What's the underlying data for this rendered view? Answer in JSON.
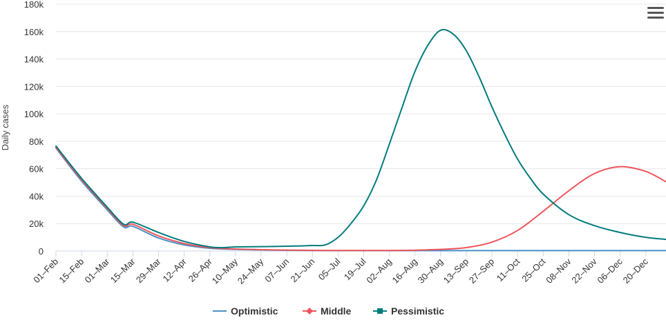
{
  "colors": {
    "optimistic": "#4a90c8",
    "middle": "#f0535a",
    "pessimistic": "#007b7c",
    "grid": "#e6e6e6",
    "axis": "#ccd6eb"
  },
  "menu": {
    "icon": "hamburger-menu-icon"
  },
  "chart_data": {
    "type": "line",
    "ylabel": "Daily cases",
    "xlabel": "",
    "ylim": [
      0,
      180000
    ],
    "yticks": [
      0,
      20000,
      40000,
      60000,
      80000,
      100000,
      120000,
      140000,
      160000,
      180000
    ],
    "ytick_labels": [
      "0",
      "20k",
      "40k",
      "60k",
      "80k",
      "100k",
      "120k",
      "140k",
      "160k",
      "180k"
    ],
    "x_start": "2021-02-01",
    "x_end": "2021-12-31",
    "xtick_dates": [
      "2021-02-01",
      "2021-02-15",
      "2021-03-01",
      "2021-03-15",
      "2021-03-29",
      "2021-04-12",
      "2021-04-26",
      "2021-05-10",
      "2021-05-24",
      "2021-06-07",
      "2021-06-21",
      "2021-07-05",
      "2021-07-19",
      "2021-08-02",
      "2021-08-16",
      "2021-08-30",
      "2021-09-13",
      "2021-09-27",
      "2021-10-11",
      "2021-10-25",
      "2021-11-08",
      "2021-11-22",
      "2021-12-06",
      "2021-12-20"
    ],
    "xtick_labels": [
      "01–Feb",
      "15–Feb",
      "01–Mar",
      "15–Mar",
      "29–Mar",
      "12–Apr",
      "26–Apr",
      "10–May",
      "24–May",
      "07–Jun",
      "21–Jun",
      "05–Jul",
      "19–Jul",
      "02–Aug",
      "16–Aug",
      "30–Aug",
      "13–Sep",
      "27–Sep",
      "11–Oct",
      "25–Oct",
      "08–Nov",
      "22–Nov",
      "06–Dec",
      "20–Dec"
    ],
    "grid": true,
    "legend_position": "bottom-center",
    "series": [
      {
        "name": "Optimistic",
        "key": "optimistic",
        "marker": "none",
        "points": [
          [
            "2021-02-01",
            75000
          ],
          [
            "2021-02-15",
            51000
          ],
          [
            "2021-03-01",
            30000
          ],
          [
            "2021-03-10",
            17500
          ],
          [
            "2021-03-15",
            18000
          ],
          [
            "2021-03-29",
            9500
          ],
          [
            "2021-04-12",
            4500
          ],
          [
            "2021-04-26",
            2000
          ],
          [
            "2021-05-10",
            1200
          ],
          [
            "2021-05-24",
            800
          ],
          [
            "2021-06-07",
            500
          ],
          [
            "2021-06-21",
            400
          ],
          [
            "2021-07-05",
            300
          ],
          [
            "2021-08-02",
            300
          ],
          [
            "2021-08-30",
            300
          ],
          [
            "2021-09-27",
            300
          ],
          [
            "2021-10-25",
            300
          ],
          [
            "2021-11-22",
            300
          ],
          [
            "2021-12-31",
            300
          ]
        ]
      },
      {
        "name": "Middle",
        "key": "middle",
        "marker": "diamond",
        "points": [
          [
            "2021-02-01",
            75500
          ],
          [
            "2021-02-15",
            52000
          ],
          [
            "2021-03-01",
            31000
          ],
          [
            "2021-03-10",
            18500
          ],
          [
            "2021-03-15",
            19500
          ],
          [
            "2021-03-29",
            11000
          ],
          [
            "2021-04-12",
            5500
          ],
          [
            "2021-04-26",
            2500
          ],
          [
            "2021-05-10",
            1500
          ],
          [
            "2021-05-24",
            1000
          ],
          [
            "2021-06-07",
            700
          ],
          [
            "2021-06-21",
            500
          ],
          [
            "2021-07-05",
            400
          ],
          [
            "2021-08-02",
            400
          ],
          [
            "2021-08-16",
            600
          ],
          [
            "2021-08-30",
            1200
          ],
          [
            "2021-09-13",
            2500
          ],
          [
            "2021-09-27",
            6500
          ],
          [
            "2021-10-11",
            15000
          ],
          [
            "2021-10-25",
            29000
          ],
          [
            "2021-11-08",
            44000
          ],
          [
            "2021-11-22",
            56500
          ],
          [
            "2021-12-06",
            61500
          ],
          [
            "2021-12-20",
            58000
          ],
          [
            "2021-12-31",
            50500
          ]
        ]
      },
      {
        "name": "Pessimistic",
        "key": "pessimistic",
        "marker": "square",
        "points": [
          [
            "2021-02-01",
            76500
          ],
          [
            "2021-02-15",
            53000
          ],
          [
            "2021-03-01",
            32000
          ],
          [
            "2021-03-10",
            19500
          ],
          [
            "2021-03-15",
            21000
          ],
          [
            "2021-03-29",
            13500
          ],
          [
            "2021-04-12",
            7000
          ],
          [
            "2021-04-26",
            3000
          ],
          [
            "2021-05-03",
            2500
          ],
          [
            "2021-05-10",
            3000
          ],
          [
            "2021-05-24",
            3200
          ],
          [
            "2021-06-07",
            3500
          ],
          [
            "2021-06-21",
            4000
          ],
          [
            "2021-06-28",
            4500
          ],
          [
            "2021-07-05",
            10000
          ],
          [
            "2021-07-12",
            20000
          ],
          [
            "2021-07-19",
            33000
          ],
          [
            "2021-07-26",
            52000
          ],
          [
            "2021-08-02",
            78000
          ],
          [
            "2021-08-09",
            105000
          ],
          [
            "2021-08-16",
            131000
          ],
          [
            "2021-08-23",
            150000
          ],
          [
            "2021-08-30",
            161000
          ],
          [
            "2021-09-06",
            158000
          ],
          [
            "2021-09-13",
            146000
          ],
          [
            "2021-09-20",
            127000
          ],
          [
            "2021-09-27",
            105000
          ],
          [
            "2021-10-04",
            85000
          ],
          [
            "2021-10-11",
            67000
          ],
          [
            "2021-10-18",
            53000
          ],
          [
            "2021-10-25",
            41500
          ],
          [
            "2021-11-08",
            26500
          ],
          [
            "2021-11-22",
            18500
          ],
          [
            "2021-12-06",
            13500
          ],
          [
            "2021-12-20",
            10000
          ],
          [
            "2021-12-31",
            8500
          ]
        ]
      }
    ]
  }
}
